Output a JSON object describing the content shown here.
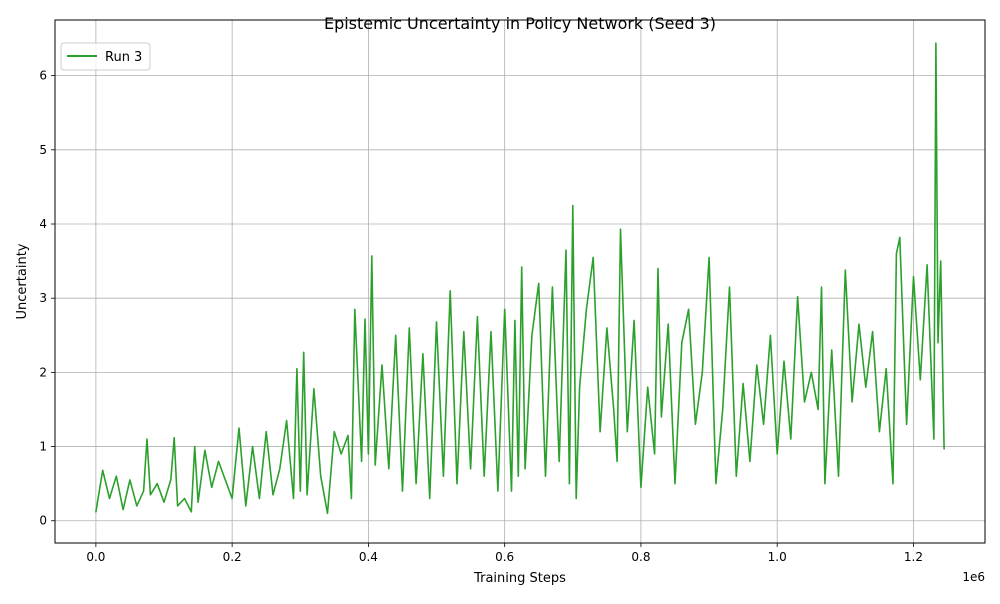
{
  "chart_data": {
    "type": "line",
    "title": "Epistemic Uncertainty in Policy Network (Seed 3)",
    "xlabel": "Training Steps",
    "ylabel": "Uncertainty",
    "x_offset_label": "1e6",
    "xlim": [
      -60000,
      1305000
    ],
    "ylim": [
      -0.3,
      6.75
    ],
    "xticks": [
      0.0,
      0.2,
      0.4,
      0.6,
      0.8,
      1.0,
      1.2
    ],
    "xtick_labels": [
      "0.0",
      "0.2",
      "0.4",
      "0.6",
      "0.8",
      "1.0",
      "1.2"
    ],
    "yticks": [
      0,
      1,
      2,
      3,
      4,
      5,
      6
    ],
    "ytick_labels": [
      "0",
      "1",
      "2",
      "3",
      "4",
      "5",
      "6"
    ],
    "grid": true,
    "legend_position": "upper-left",
    "series": [
      {
        "name": "Run 3",
        "color": "#2ca02c",
        "x": [
          0,
          10000,
          20000,
          30000,
          40000,
          50000,
          60000,
          70000,
          75000,
          80000,
          90000,
          100000,
          110000,
          115000,
          120000,
          130000,
          140000,
          145000,
          150000,
          160000,
          170000,
          180000,
          190000,
          200000,
          210000,
          220000,
          230000,
          240000,
          250000,
          260000,
          270000,
          280000,
          290000,
          295000,
          300000,
          305000,
          310000,
          320000,
          330000,
          340000,
          350000,
          360000,
          370000,
          375000,
          380000,
          390000,
          395000,
          400000,
          405000,
          410000,
          420000,
          430000,
          440000,
          450000,
          460000,
          470000,
          480000,
          490000,
          500000,
          510000,
          520000,
          530000,
          540000,
          550000,
          560000,
          570000,
          580000,
          590000,
          600000,
          610000,
          615000,
          620000,
          625000,
          630000,
          640000,
          650000,
          660000,
          670000,
          680000,
          690000,
          695000,
          700000,
          705000,
          710000,
          720000,
          730000,
          740000,
          750000,
          760000,
          765000,
          770000,
          780000,
          790000,
          800000,
          810000,
          820000,
          825000,
          830000,
          840000,
          850000,
          860000,
          870000,
          880000,
          890000,
          900000,
          910000,
          920000,
          930000,
          940000,
          950000,
          960000,
          970000,
          980000,
          990000,
          1000000,
          1010000,
          1020000,
          1030000,
          1040000,
          1050000,
          1060000,
          1065000,
          1070000,
          1080000,
          1090000,
          1100000,
          1110000,
          1120000,
          1130000,
          1140000,
          1150000,
          1160000,
          1170000,
          1175000,
          1180000,
          1190000,
          1200000,
          1210000,
          1220000,
          1230000,
          1233000,
          1236000,
          1240000,
          1245000
        ],
        "values": [
          0.12,
          0.68,
          0.3,
          0.6,
          0.15,
          0.55,
          0.2,
          0.4,
          1.1,
          0.35,
          0.5,
          0.25,
          0.55,
          1.12,
          0.2,
          0.3,
          0.12,
          1.0,
          0.25,
          0.95,
          0.45,
          0.8,
          0.55,
          0.3,
          1.25,
          0.2,
          1.0,
          0.3,
          1.2,
          0.35,
          0.7,
          1.35,
          0.3,
          2.05,
          0.4,
          2.27,
          0.35,
          1.78,
          0.6,
          0.1,
          1.2,
          0.9,
          1.15,
          0.3,
          2.85,
          0.8,
          2.72,
          0.9,
          3.57,
          0.75,
          2.1,
          0.7,
          2.5,
          0.4,
          2.6,
          0.5,
          2.25,
          0.3,
          2.68,
          0.6,
          3.1,
          0.5,
          2.55,
          0.7,
          2.75,
          0.6,
          2.55,
          0.4,
          2.85,
          0.4,
          2.7,
          0.6,
          3.42,
          0.7,
          2.5,
          3.2,
          0.6,
          3.15,
          0.8,
          3.65,
          0.5,
          4.25,
          0.3,
          1.8,
          2.85,
          3.55,
          1.2,
          2.6,
          1.5,
          0.8,
          3.93,
          1.2,
          2.7,
          0.45,
          1.8,
          0.9,
          3.4,
          1.4,
          2.65,
          0.5,
          2.4,
          2.85,
          1.3,
          2.0,
          3.55,
          0.5,
          1.5,
          3.15,
          0.6,
          1.85,
          0.8,
          2.1,
          1.3,
          2.5,
          0.9,
          2.15,
          1.1,
          3.02,
          1.6,
          2.0,
          1.5,
          3.15,
          0.5,
          2.3,
          0.6,
          3.38,
          1.6,
          2.65,
          1.8,
          2.55,
          1.2,
          2.05,
          0.5,
          3.6,
          3.82,
          1.3,
          3.29,
          1.9,
          3.45,
          1.1,
          6.44,
          2.4,
          3.5,
          0.97
        ]
      }
    ]
  }
}
